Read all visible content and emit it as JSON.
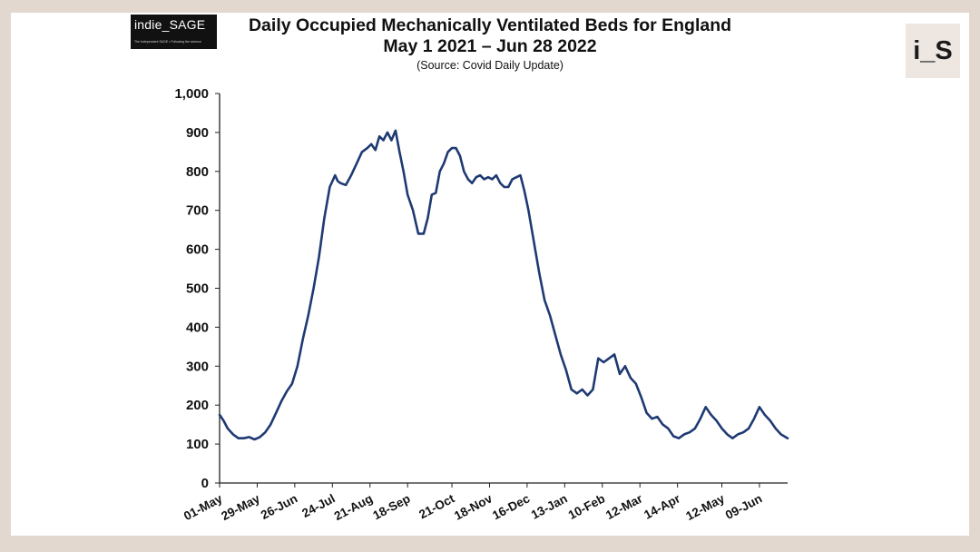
{
  "logos": {
    "left_brand": "indie_SAGE",
    "left_tagline": "The Independent SAGE • Following the science",
    "right_mark": "i_S"
  },
  "chart_data": {
    "type": "line",
    "title": "Daily Occupied Mechanically Ventilated Beds for England",
    "subtitle": "May 1 2021 – Jun 28 2022",
    "source": "(Source: Covid Daily Update)",
    "xlabel": "",
    "ylabel": "",
    "ylim": [
      0,
      1000
    ],
    "yticks": [
      0,
      100,
      200,
      300,
      400,
      500,
      600,
      700,
      800,
      900,
      1000
    ],
    "ytick_labels": [
      "0",
      "100",
      "200",
      "300",
      "400",
      "500",
      "600",
      "700",
      "800",
      "900",
      "1,000"
    ],
    "grid": false,
    "legend": "none",
    "line_color": "#1f3a73",
    "x_range_days": [
      0,
      423
    ],
    "x_tick_days": [
      0,
      28,
      56,
      84,
      112,
      140,
      173,
      201,
      229,
      257,
      285,
      313,
      341,
      374,
      402
    ],
    "x_tick_labels": [
      "01-May",
      "29-May",
      "26-Jun",
      "24-Jul",
      "21-Aug",
      "18-Sep",
      "21-Oct",
      "18-Nov",
      "16-Dec",
      "13-Jan",
      "10-Feb",
      "12-Mar",
      "14-Apr",
      "12-May",
      "09-Jun"
    ],
    "series": [
      {
        "name": "Mechanically ventilated beds",
        "x": [
          0,
          3,
          6,
          10,
          14,
          18,
          22,
          26,
          30,
          34,
          38,
          42,
          46,
          50,
          54,
          58,
          62,
          66,
          70,
          74,
          78,
          82,
          86,
          88,
          90,
          94,
          98,
          102,
          106,
          110,
          113,
          116,
          119,
          122,
          125,
          128,
          131,
          134,
          137,
          140,
          144,
          148,
          152,
          155,
          158,
          161,
          164,
          167,
          170,
          173,
          176,
          179,
          182,
          185,
          188,
          191,
          194,
          197,
          200,
          203,
          206,
          209,
          212,
          215,
          218,
          221,
          224,
          227,
          230,
          234,
          238,
          242,
          246,
          250,
          254,
          258,
          262,
          266,
          270,
          274,
          278,
          282,
          286,
          290,
          294,
          298,
          302,
          306,
          310,
          314,
          318,
          322,
          326,
          330,
          334,
          338,
          342,
          346,
          350,
          354,
          358,
          362,
          366,
          370,
          374,
          378,
          382,
          386,
          390,
          394,
          398,
          402,
          406,
          410,
          414,
          418,
          423
        ],
        "y": [
          175,
          160,
          140,
          125,
          115,
          115,
          118,
          112,
          118,
          130,
          150,
          180,
          210,
          235,
          255,
          300,
          370,
          430,
          500,
          580,
          680,
          760,
          790,
          775,
          770,
          765,
          790,
          820,
          850,
          860,
          870,
          855,
          890,
          880,
          900,
          880,
          905,
          850,
          800,
          740,
          700,
          640,
          640,
          680,
          740,
          745,
          800,
          820,
          850,
          860,
          860,
          840,
          800,
          780,
          770,
          785,
          790,
          780,
          785,
          780,
          790,
          770,
          760,
          760,
          780,
          785,
          790,
          750,
          700,
          620,
          540,
          470,
          430,
          380,
          330,
          290,
          240,
          230,
          240,
          225,
          240,
          320,
          310,
          320,
          330,
          280,
          300,
          270,
          255,
          220,
          180,
          165,
          170,
          150,
          140,
          120,
          115,
          125,
          130,
          140,
          165,
          195,
          175,
          160,
          140,
          125,
          115,
          125,
          130,
          140,
          165,
          195,
          175,
          160,
          140,
          125,
          115
        ]
      }
    ]
  }
}
